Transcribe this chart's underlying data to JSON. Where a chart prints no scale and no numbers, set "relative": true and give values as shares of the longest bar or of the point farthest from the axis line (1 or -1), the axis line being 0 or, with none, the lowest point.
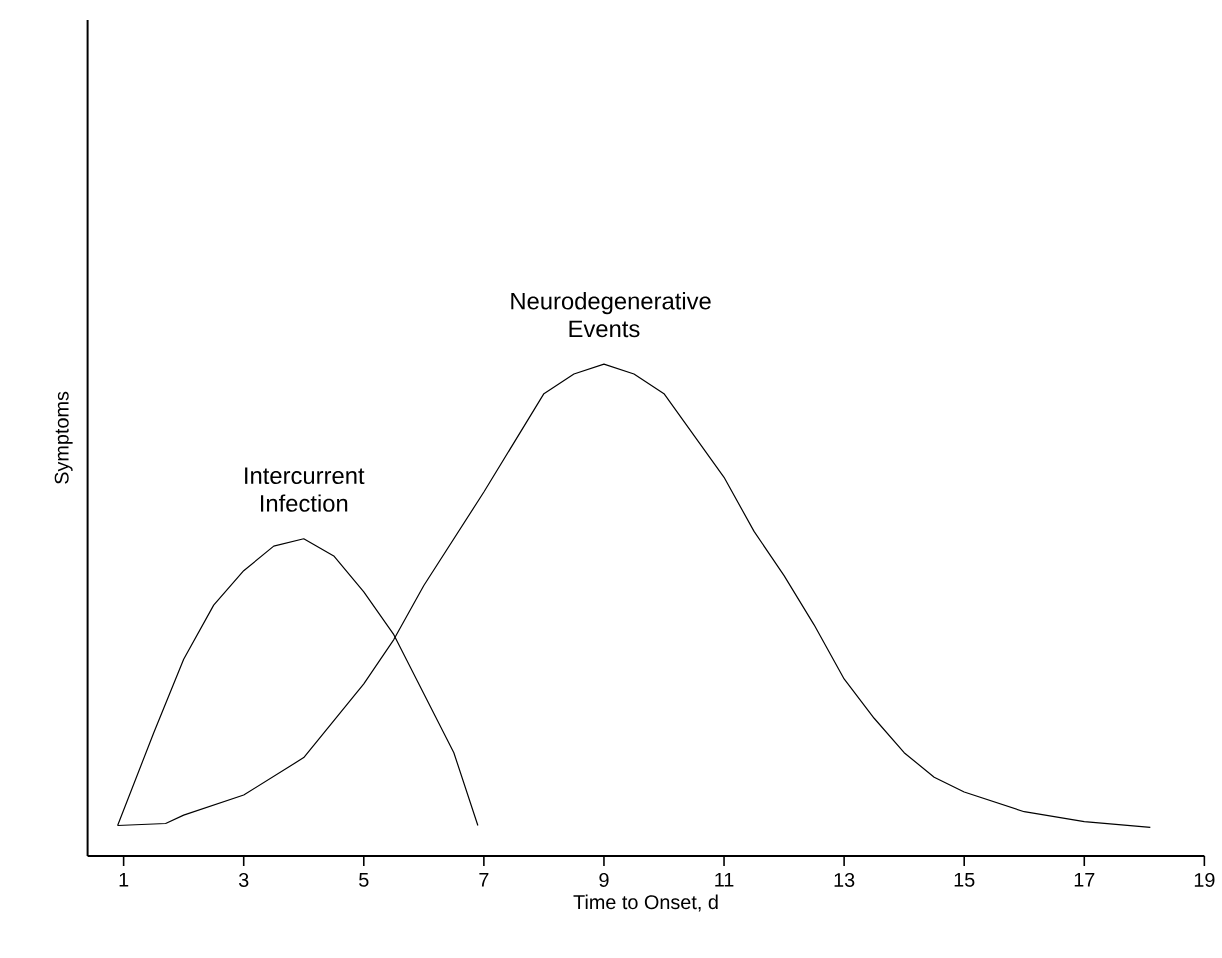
{
  "chart_data": {
    "type": "line",
    "xlabel": "Time to Onset, d",
    "ylabel": "Symptoms",
    "relative": true,
    "xlim": [
      0.4,
      19
    ],
    "xticks": [
      1,
      3,
      5,
      7,
      9,
      11,
      13,
      15,
      17,
      19
    ],
    "tick_labels": "x",
    "marker": "none",
    "line_style": "solid",
    "legend": false,
    "series": [
      {
        "name": "Intercurrent Infection",
        "color": "#000000",
        "x": [
          0.9,
          1.5,
          2,
          2.5,
          3,
          3.5,
          4,
          4.5,
          5,
          5.5,
          6,
          6.5,
          6.9
        ],
        "values": [
          0.062,
          0.25,
          0.4,
          0.51,
          0.58,
          0.63,
          0.645,
          0.61,
          0.537,
          0.45,
          0.33,
          0.21,
          0.062
        ]
      },
      {
        "name": "Neurodegenerative Events",
        "color": "#000000",
        "x": [
          0.9,
          1.7,
          2,
          3,
          4,
          5,
          5.5,
          6,
          7,
          8,
          8.5,
          9,
          9.5,
          10,
          10.5,
          11,
          11.5,
          12,
          12.5,
          13,
          13.5,
          14,
          14.5,
          15,
          16,
          17,
          18.1
        ],
        "values": [
          0.062,
          0.066,
          0.083,
          0.124,
          0.2,
          0.35,
          0.44,
          0.55,
          0.74,
          0.94,
          0.98,
          1.0,
          0.98,
          0.94,
          0.855,
          0.77,
          0.66,
          0.57,
          0.47,
          0.36,
          0.28,
          0.21,
          0.16,
          0.13,
          0.09,
          0.07,
          0.058
        ]
      }
    ]
  }
}
